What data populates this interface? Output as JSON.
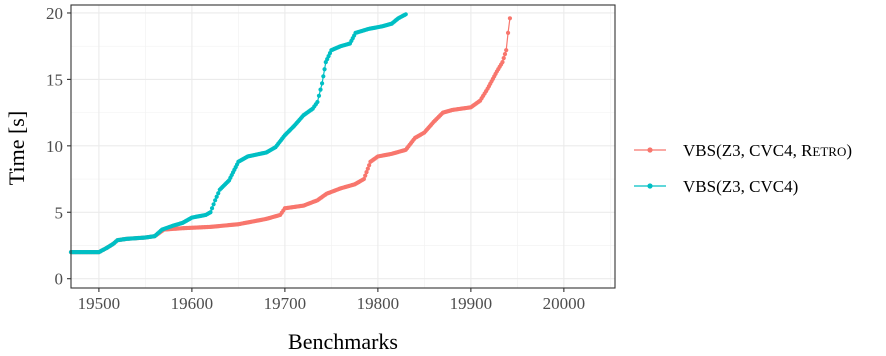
{
  "chart_data": {
    "type": "line",
    "xlabel": "Benchmarks",
    "ylabel": "Time [s]",
    "xlim": [
      19470,
      20055
    ],
    "ylim": [
      -0.7,
      20.6
    ],
    "x_ticks": [
      19500,
      19600,
      19700,
      19800,
      19900,
      20000
    ],
    "y_ticks": [
      0,
      5,
      10,
      15,
      20
    ],
    "grid": true,
    "legend_position": "right",
    "series": [
      {
        "name": "VBS(Z3, CVC4, Retro)",
        "legend_main": "VBS(Z3, CVC4, ",
        "legend_sc_first": "R",
        "legend_sc_rest": "ETRO",
        "legend_close": ")",
        "color": "#F8766D",
        "points": [
          [
            19470,
            2.0
          ],
          [
            19500,
            2.0
          ],
          [
            19508,
            2.3
          ],
          [
            19515,
            2.6
          ],
          [
            19520,
            2.9
          ],
          [
            19530,
            3.0
          ],
          [
            19550,
            3.1
          ],
          [
            19560,
            3.2
          ],
          [
            19570,
            3.7
          ],
          [
            19590,
            3.8
          ],
          [
            19620,
            3.9
          ],
          [
            19650,
            4.1
          ],
          [
            19680,
            4.5
          ],
          [
            19695,
            4.8
          ],
          [
            19700,
            5.3
          ],
          [
            19720,
            5.5
          ],
          [
            19735,
            5.9
          ],
          [
            19745,
            6.4
          ],
          [
            19760,
            6.8
          ],
          [
            19775,
            7.1
          ],
          [
            19785,
            7.5
          ],
          [
            19792,
            8.8
          ],
          [
            19800,
            9.2
          ],
          [
            19815,
            9.4
          ],
          [
            19830,
            9.7
          ],
          [
            19840,
            10.6
          ],
          [
            19850,
            11.0
          ],
          [
            19860,
            11.8
          ],
          [
            19870,
            12.5
          ],
          [
            19880,
            12.7
          ],
          [
            19900,
            12.9
          ],
          [
            19910,
            13.4
          ],
          [
            19918,
            14.3
          ],
          [
            19928,
            15.6
          ],
          [
            19934,
            16.3
          ],
          [
            19938,
            17.2
          ],
          [
            19940,
            18.5
          ],
          [
            19942,
            19.6
          ]
        ]
      },
      {
        "name": "VBS(Z3, CVC4)",
        "legend_main": "VBS(Z3, CVC4)",
        "color": "#00BFC4",
        "points": [
          [
            19470,
            2.0
          ],
          [
            19500,
            2.0
          ],
          [
            19508,
            2.3
          ],
          [
            19515,
            2.6
          ],
          [
            19520,
            2.9
          ],
          [
            19530,
            3.0
          ],
          [
            19550,
            3.1
          ],
          [
            19560,
            3.2
          ],
          [
            19568,
            3.7
          ],
          [
            19580,
            4.0
          ],
          [
            19590,
            4.2
          ],
          [
            19600,
            4.6
          ],
          [
            19615,
            4.8
          ],
          [
            19620,
            5.0
          ],
          [
            19625,
            5.9
          ],
          [
            19630,
            6.7
          ],
          [
            19640,
            7.4
          ],
          [
            19650,
            8.8
          ],
          [
            19660,
            9.2
          ],
          [
            19680,
            9.5
          ],
          [
            19690,
            9.9
          ],
          [
            19700,
            10.8
          ],
          [
            19710,
            11.5
          ],
          [
            19720,
            12.3
          ],
          [
            19730,
            12.8
          ],
          [
            19735,
            13.3
          ],
          [
            19740,
            14.7
          ],
          [
            19744,
            16.3
          ],
          [
            19750,
            17.2
          ],
          [
            19760,
            17.5
          ],
          [
            19770,
            17.7
          ],
          [
            19776,
            18.5
          ],
          [
            19790,
            18.8
          ],
          [
            19805,
            19.0
          ],
          [
            19815,
            19.2
          ],
          [
            19822,
            19.6
          ],
          [
            19830,
            19.9
          ]
        ]
      }
    ]
  }
}
